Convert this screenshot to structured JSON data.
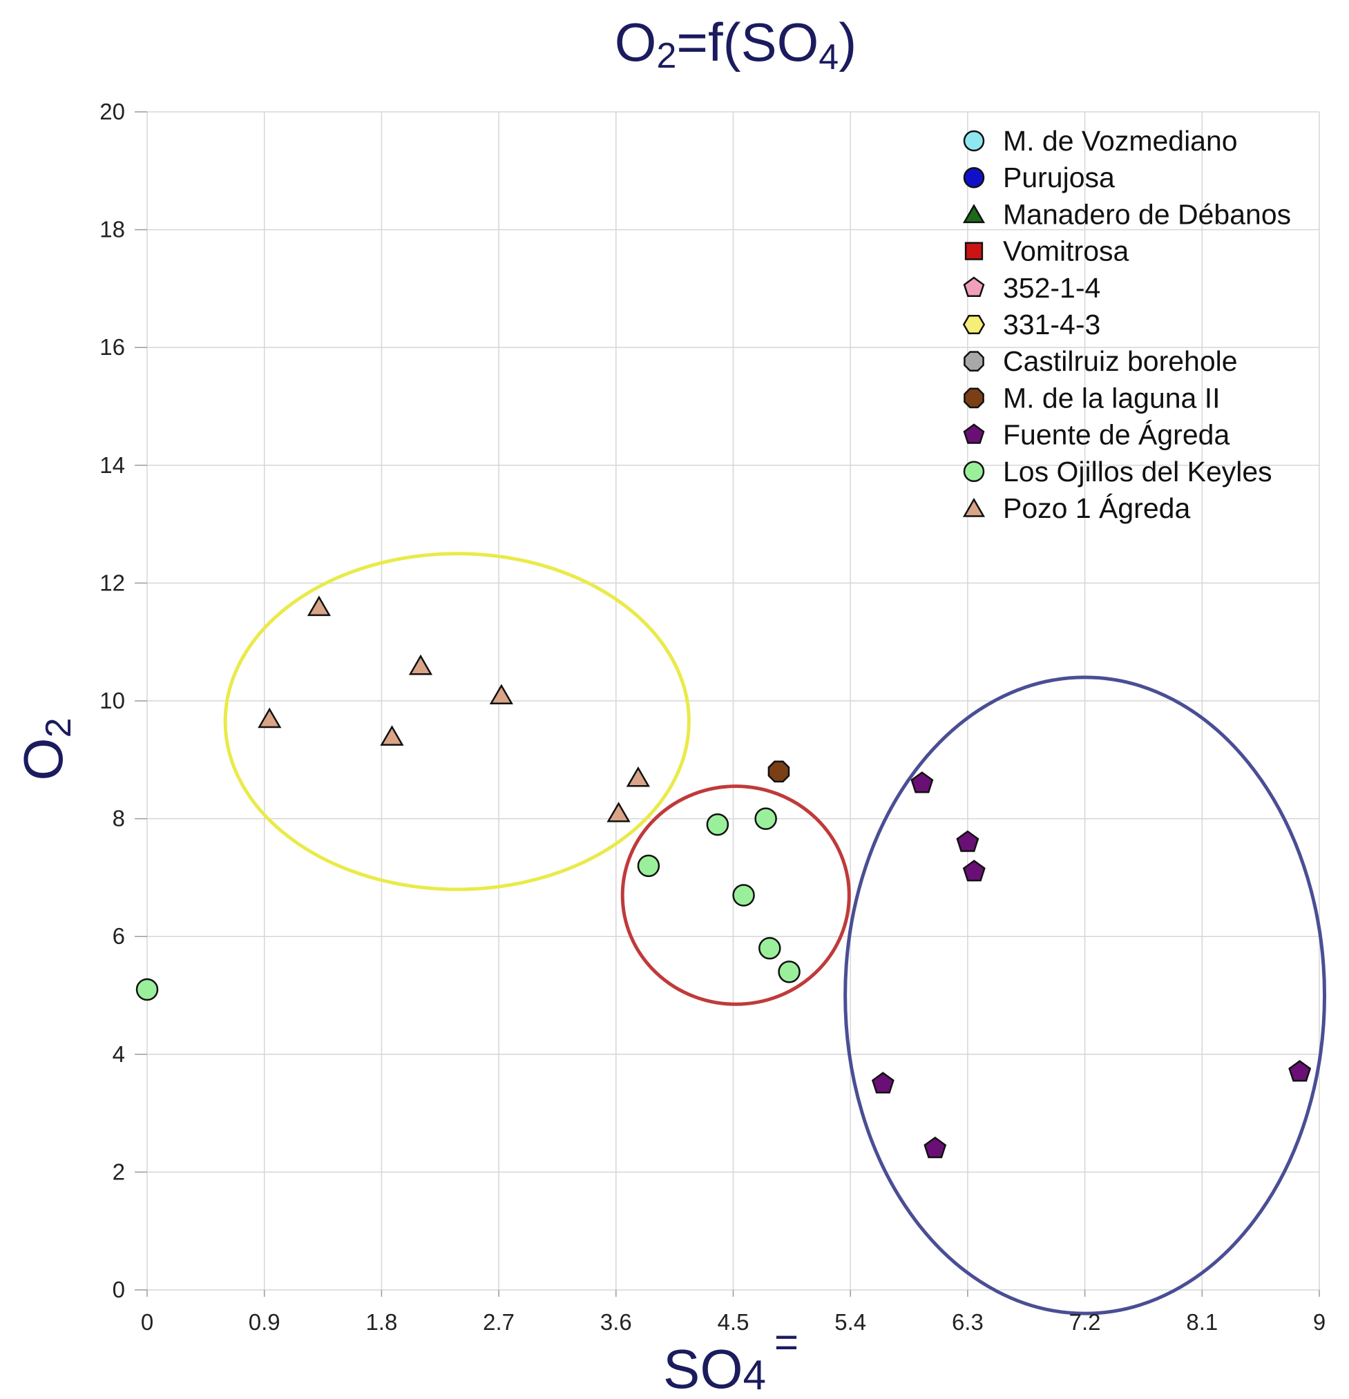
{
  "chart_data": {
    "type": "scatter",
    "title": "O₂=f(SO₄)",
    "title_main": "O",
    "title_sub": "2",
    "title_mid": "=f(SO",
    "title_sub2": "4",
    "title_end": ")",
    "xlabel": "SO₄⁼",
    "xlabel_main": "SO",
    "xlabel_sub": "4",
    "xlabel_sup": "=",
    "ylabel": "O₂",
    "ylabel_main": "O",
    "ylabel_sub": "2",
    "xlim": [
      0,
      9
    ],
    "ylim": [
      0,
      20
    ],
    "x_ticks": [
      0,
      0.9,
      1.8,
      2.7,
      3.6,
      4.5,
      5.4,
      6.3,
      7.2,
      8.1,
      9
    ],
    "x_tick_labels": [
      "0",
      "0.9",
      "1.8",
      "2.7",
      "3.6",
      "4.5",
      "5.4",
      "6.3",
      "7.2",
      "8.1",
      "9"
    ],
    "y_ticks": [
      0,
      2,
      4,
      6,
      8,
      10,
      12,
      14,
      16,
      18,
      20
    ],
    "y_tick_labels": [
      "0",
      "2",
      "4",
      "6",
      "8",
      "10",
      "12",
      "14",
      "16",
      "18",
      "20"
    ],
    "grid": true,
    "legend_position": "top-right",
    "series": [
      {
        "name": "M. de Vozmediano",
        "marker": "circle",
        "color": "#8fe8f0",
        "points": []
      },
      {
        "name": "Purujosa",
        "marker": "circle",
        "color": "#1010c8",
        "points": []
      },
      {
        "name": "Manadero de Débanos",
        "marker": "triangle",
        "color": "#1c6a1c",
        "points": []
      },
      {
        "name": "Vomitrosa",
        "marker": "square",
        "color": "#cc1414",
        "points": []
      },
      {
        "name": "352-1-4",
        "marker": "pentagon",
        "color": "#f0a0b8",
        "points": []
      },
      {
        "name": "331-4-3",
        "marker": "hexagon",
        "color": "#f5ef78",
        "points": []
      },
      {
        "name": "Castilruiz borehole",
        "marker": "octagon",
        "color": "#a8a8a8",
        "points": []
      },
      {
        "name": "M. de la laguna II",
        "marker": "octagon",
        "color": "#7b3f16",
        "points": [
          [
            4.85,
            8.8
          ]
        ]
      },
      {
        "name": "Fuente de Ágreda",
        "marker": "pentagon",
        "color": "#6a0f76",
        "points": [
          [
            5.95,
            8.6
          ],
          [
            6.3,
            7.6
          ],
          [
            6.35,
            7.1
          ],
          [
            5.65,
            3.5
          ],
          [
            6.05,
            2.4
          ],
          [
            8.85,
            3.7
          ]
        ]
      },
      {
        "name": "Los Ojillos del Keyles",
        "marker": "circle",
        "color": "#9af09a",
        "points": [
          [
            0,
            5.1
          ],
          [
            3.85,
            7.2
          ],
          [
            4.38,
            7.9
          ],
          [
            4.75,
            8.0
          ],
          [
            4.58,
            6.7
          ],
          [
            4.78,
            5.8
          ],
          [
            4.93,
            5.4
          ]
        ]
      },
      {
        "name": "Pozo 1 Ágreda",
        "marker": "triangle",
        "color": "#d9a488",
        "points": [
          [
            1.32,
            11.6
          ],
          [
            0.94,
            9.7
          ],
          [
            2.1,
            10.6
          ],
          [
            1.88,
            9.4
          ],
          [
            2.72,
            10.1
          ],
          [
            3.77,
            8.7
          ],
          [
            3.62,
            8.1
          ]
        ]
      }
    ],
    "ellipses": [
      {
        "name": "yellow-group",
        "color": "#eaea4a",
        "center": [
          2.38,
          9.65
        ],
        "radii": [
          1.78,
          2.85
        ]
      },
      {
        "name": "red-group",
        "color": "#c03a3a",
        "center": [
          4.52,
          6.7
        ],
        "radii": [
          0.87,
          1.85
        ]
      },
      {
        "name": "blue-group",
        "color": "#4a4e94",
        "center": [
          7.2,
          5.0
        ],
        "radii": [
          1.84,
          5.4
        ]
      }
    ]
  }
}
